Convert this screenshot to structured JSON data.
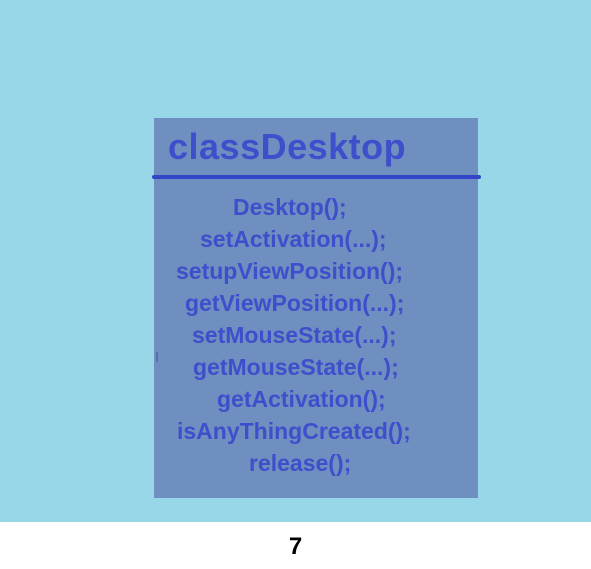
{
  "class_diagram": {
    "title": "classDesktop",
    "methods": [
      "Desktop();",
      "setActivation(...);",
      "setupViewPosition();",
      "getViewPosition(...);",
      "setMouseState(...);",
      "getMouseState(...);",
      "getActivation();",
      "isAnyThingCreated();",
      "release();"
    ]
  },
  "footer": {
    "page_number": "7"
  },
  "colors": {
    "background": "#97d7e8",
    "box": "#6e8fbf",
    "text": "#3f4fcc",
    "rule": "#3346c8"
  }
}
